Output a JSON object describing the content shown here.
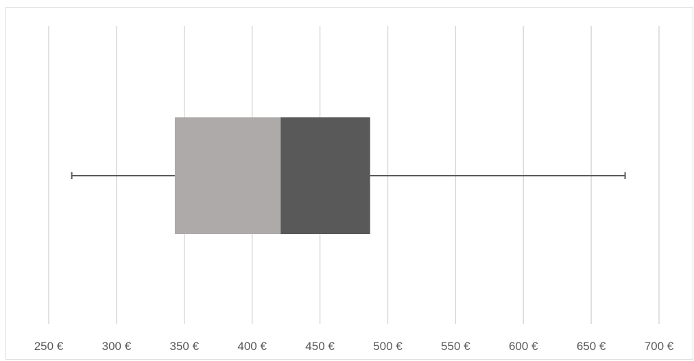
{
  "chart_data": {
    "type": "box",
    "orientation": "horizontal",
    "xlim": [
      250,
      700
    ],
    "x_ticks": [
      250,
      300,
      350,
      400,
      450,
      500,
      550,
      600,
      650,
      700
    ],
    "x_tick_labels": [
      "250 €",
      "300 €",
      "350 €",
      "400 €",
      "450 €",
      "500 €",
      "550 €",
      "600 €",
      "650 €",
      "700 €"
    ],
    "grid": "vertical",
    "min": 267,
    "q1": 343,
    "median": 421,
    "q3": 487,
    "max": 675,
    "colors": {
      "lower_box": "#aeaaaa",
      "upper_box": "#595959",
      "whisker": "#595959",
      "gridline": "#d9d9d9",
      "tick_label": "#595959"
    }
  }
}
